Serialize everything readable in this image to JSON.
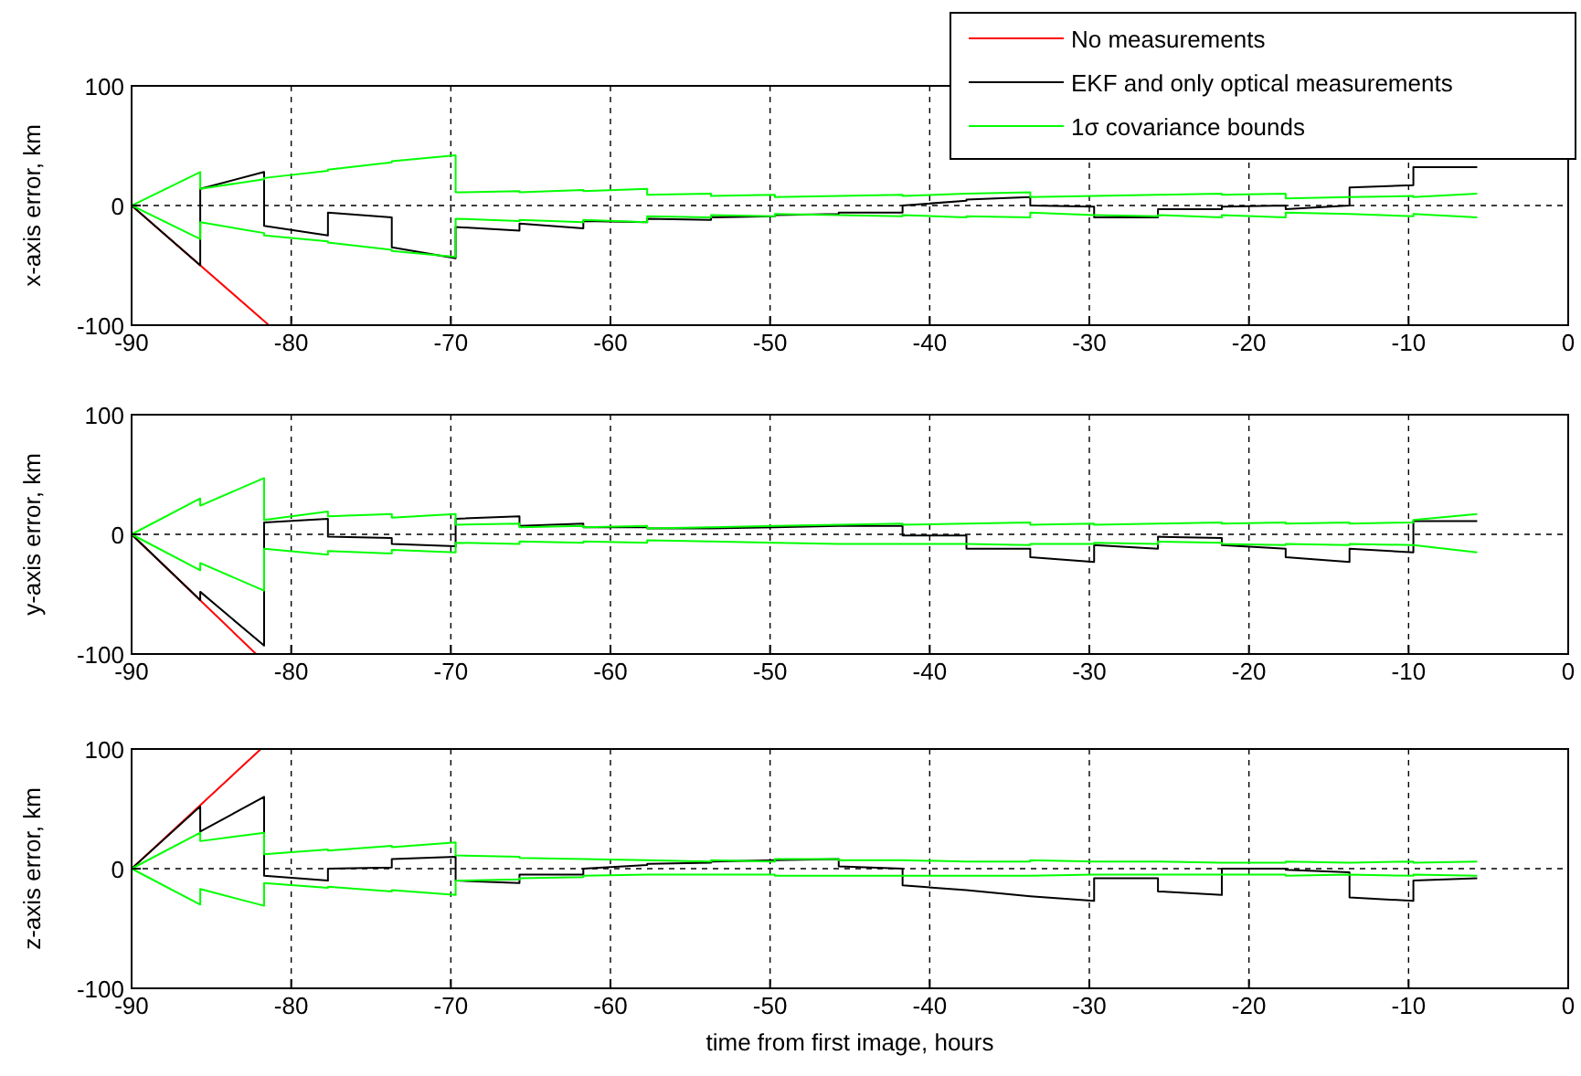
{
  "chart_data": [
    {
      "type": "line",
      "ylabel": "x-axis error, km",
      "xlim": [
        -90,
        0
      ],
      "ylim": [
        -100,
        100
      ],
      "xticks": [
        -90,
        -80,
        -70,
        -60,
        -50,
        -40,
        -30,
        -20,
        -10,
        0
      ],
      "yticks": [
        -100,
        0,
        100
      ],
      "grid": true,
      "legend": "top right",
      "x": [
        -90,
        -85.7,
        -85.7,
        -81.7,
        -81.7,
        -77.7,
        -77.7,
        -73.7,
        -73.7,
        -69.7,
        -69.7,
        -65.7,
        -65.7,
        -61.7,
        -61.7,
        -57.7,
        -57.7,
        -53.7,
        -53.7,
        -49.7,
        -49.7,
        -45.7,
        -45.7,
        -41.7,
        -41.7,
        -37.7,
        -37.7,
        -33.7,
        -33.7,
        -29.7,
        -29.7,
        -25.7,
        -25.7,
        -21.7,
        -21.7,
        -17.7,
        -17.7,
        -13.7,
        -13.7,
        -9.7,
        -9.7,
        -5.7
      ],
      "series": [
        {
          "name": "No measurements",
          "color": "#ff0000",
          "x": [
            -90,
            -81.4
          ],
          "values": [
            0,
            -100
          ]
        },
        {
          "name": "EKF and only optical measurements",
          "color": "#000000",
          "values": [
            0,
            -50,
            14,
            28,
            -17,
            -25,
            -6,
            -10,
            -35,
            -44,
            -18,
            -21,
            -15,
            -19,
            -13,
            -14,
            -11,
            -12,
            -10,
            -9,
            -8,
            -7,
            -6,
            -6,
            0,
            4,
            5,
            7,
            0,
            -1,
            -10,
            -10,
            -3,
            -3,
            -1,
            0,
            -3,
            0,
            15,
            17,
            32,
            32
          ]
        },
        {
          "name": "1σ covariance bounds",
          "color": "#00ff00",
          "values": [
            0,
            28,
            14,
            22,
            23,
            29,
            30,
            36,
            37,
            42,
            11,
            12,
            11,
            13,
            12,
            14,
            9,
            10,
            8,
            9,
            7,
            8,
            8,
            9,
            8,
            10,
            10,
            11,
            7,
            8,
            8,
            9,
            9,
            10,
            9,
            10,
            6,
            7,
            7,
            8,
            7,
            10
          ]
        },
        {
          "color": "#00ff00",
          "values": [
            0,
            -28,
            -14,
            -23,
            -25,
            -30,
            -31,
            -37,
            -38,
            -43,
            -11,
            -13,
            -12,
            -14,
            -12,
            -14,
            -9,
            -10,
            -8,
            -9,
            -7,
            -8,
            -8,
            -9,
            -8,
            -10,
            -9,
            -10,
            -6,
            -8,
            -8,
            -9,
            -8,
            -10,
            -8,
            -10,
            -6,
            -7,
            -7,
            -9,
            -7,
            -10
          ]
        }
      ]
    },
    {
      "type": "line",
      "ylabel": "y-axis error, km",
      "xlim": [
        -90,
        0
      ],
      "ylim": [
        -100,
        100
      ],
      "xticks": [
        -90,
        -80,
        -70,
        -60,
        -50,
        -40,
        -30,
        -20,
        -10,
        0
      ],
      "yticks": [
        -100,
        0,
        100
      ],
      "grid": true,
      "x": [
        -90,
        -85.7,
        -85.7,
        -81.7,
        -81.7,
        -77.7,
        -77.7,
        -73.7,
        -73.7,
        -69.7,
        -69.7,
        -65.7,
        -65.7,
        -61.7,
        -61.7,
        -57.7,
        -57.7,
        -53.7,
        -53.7,
        -49.7,
        -49.7,
        -45.7,
        -45.7,
        -41.7,
        -41.7,
        -37.7,
        -37.7,
        -33.7,
        -33.7,
        -29.7,
        -29.7,
        -25.7,
        -25.7,
        -21.7,
        -21.7,
        -17.7,
        -17.7,
        -13.7,
        -13.7,
        -9.7,
        -9.7,
        -5.7
      ],
      "series": [
        {
          "color": "#ff0000",
          "x": [
            -90,
            -82.2
          ],
          "values": [
            0,
            -100
          ]
        },
        {
          "color": "#000000",
          "values": [
            0,
            -55,
            -48,
            -93,
            10,
            13,
            -2,
            -3,
            -8,
            -10,
            13,
            15,
            7,
            9,
            6,
            6,
            5,
            5,
            5,
            6,
            6,
            7,
            7,
            7,
            -1,
            -1,
            -12,
            -12,
            -19,
            -23,
            -9,
            -12,
            -2,
            -3,
            -9,
            -12,
            -19,
            -23,
            -12,
            -15,
            11,
            11
          ]
        },
        {
          "color": "#00ff00",
          "values": [
            0,
            30,
            24,
            47,
            12,
            19,
            15,
            17,
            14,
            17,
            8,
            9,
            6,
            7,
            6,
            7,
            5,
            6,
            6,
            7,
            7,
            8,
            8,
            9,
            8,
            9,
            9,
            10,
            8,
            9,
            8,
            9,
            9,
            10,
            9,
            10,
            9,
            10,
            9,
            10,
            12,
            17
          ]
        },
        {
          "color": "#00ff00",
          "values": [
            0,
            -30,
            -24,
            -47,
            -12,
            -17,
            -14,
            -16,
            -13,
            -15,
            -7,
            -8,
            -6,
            -7,
            -6,
            -7,
            -5,
            -6,
            -6,
            -7,
            -7,
            -8,
            -8,
            -8,
            -8,
            -8,
            -8,
            -9,
            -8,
            -8,
            -7,
            -8,
            -6,
            -7,
            -8,
            -9,
            -8,
            -9,
            -8,
            -9,
            -9,
            -15
          ]
        }
      ]
    },
    {
      "type": "line",
      "ylabel": "z-axis error, km",
      "xlabel": "time from first image, hours",
      "xlim": [
        -90,
        0
      ],
      "ylim": [
        -100,
        100
      ],
      "xticks": [
        -90,
        -80,
        -70,
        -60,
        -50,
        -40,
        -30,
        -20,
        -10,
        0
      ],
      "yticks": [
        -100,
        0,
        100
      ],
      "grid": true,
      "x": [
        -90,
        -85.7,
        -85.7,
        -81.7,
        -81.7,
        -77.7,
        -77.7,
        -73.7,
        -73.7,
        -69.7,
        -69.7,
        -65.7,
        -65.7,
        -61.7,
        -61.7,
        -57.7,
        -57.7,
        -53.7,
        -53.7,
        -49.7,
        -49.7,
        -45.7,
        -45.7,
        -41.7,
        -41.7,
        -37.7,
        -37.7,
        -33.7,
        -33.7,
        -29.7,
        -29.7,
        -25.7,
        -25.7,
        -21.7,
        -21.7,
        -17.7,
        -17.7,
        -13.7,
        -13.7,
        -9.7,
        -9.7,
        -5.7
      ],
      "series": [
        {
          "color": "#ff0000",
          "x": [
            -90,
            -81.9
          ],
          "values": [
            0,
            100
          ]
        },
        {
          "color": "#000000",
          "values": [
            0,
            52,
            31,
            60,
            -6,
            -10,
            0,
            1,
            8,
            10,
            -10,
            -12,
            -5,
            -5,
            0,
            3,
            4,
            5,
            6,
            7,
            7,
            8,
            2,
            0,
            -14,
            -18,
            -18,
            -23,
            -23,
            -27,
            -8,
            -8,
            -19,
            -22,
            0,
            0,
            -1,
            -3,
            -24,
            -27,
            -10,
            -8
          ]
        },
        {
          "color": "#00ff00",
          "values": [
            0,
            30,
            23,
            30,
            12,
            16,
            15,
            19,
            18,
            22,
            11,
            10,
            9,
            8,
            8,
            7,
            7,
            6,
            7,
            6,
            8,
            8,
            7,
            7,
            7,
            6,
            6,
            6,
            7,
            6,
            6,
            6,
            6,
            5,
            5,
            5,
            6,
            5,
            5,
            6,
            5,
            6
          ]
        },
        {
          "color": "#00ff00",
          "values": [
            0,
            -30,
            -17,
            -31,
            -12,
            -16,
            -15,
            -19,
            -18,
            -22,
            -10,
            -9,
            -8,
            -7,
            -6,
            -5,
            -5,
            -5,
            -5,
            -5,
            -6,
            -6,
            -6,
            -6,
            -6,
            -6,
            -6,
            -6,
            -6,
            -5,
            -5,
            -5,
            -5,
            -5,
            -5,
            -5,
            -6,
            -5,
            -5,
            -6,
            -5,
            -6
          ]
        }
      ]
    }
  ]
}
